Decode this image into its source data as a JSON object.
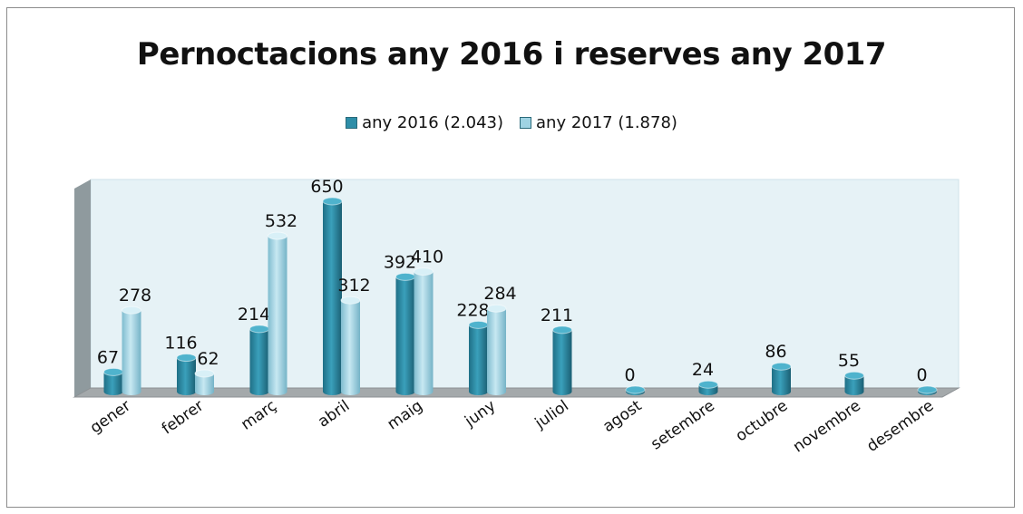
{
  "chart_data": {
    "type": "bar",
    "title": "Pernoctacions any 2016 i reserves any 2017",
    "categories": [
      "gener",
      "febrer",
      "març",
      "abril",
      "maig",
      "juny",
      "juliol",
      "agost",
      "setembre",
      "octubre",
      "novembre",
      "desembre"
    ],
    "series": [
      {
        "name": "any 2016 (2.043)",
        "color": "#2e8ea8",
        "values": [
          67,
          116,
          214,
          650,
          392,
          228,
          211,
          0,
          24,
          86,
          55,
          0
        ]
      },
      {
        "name": "any 2017 (1.878)",
        "color": "#9fd3e3",
        "values": [
          278,
          62,
          532,
          312,
          410,
          284,
          null,
          null,
          null,
          null,
          null,
          null
        ]
      }
    ],
    "ylim": [
      0,
      650
    ],
    "legend_position": "top",
    "grid": false
  }
}
